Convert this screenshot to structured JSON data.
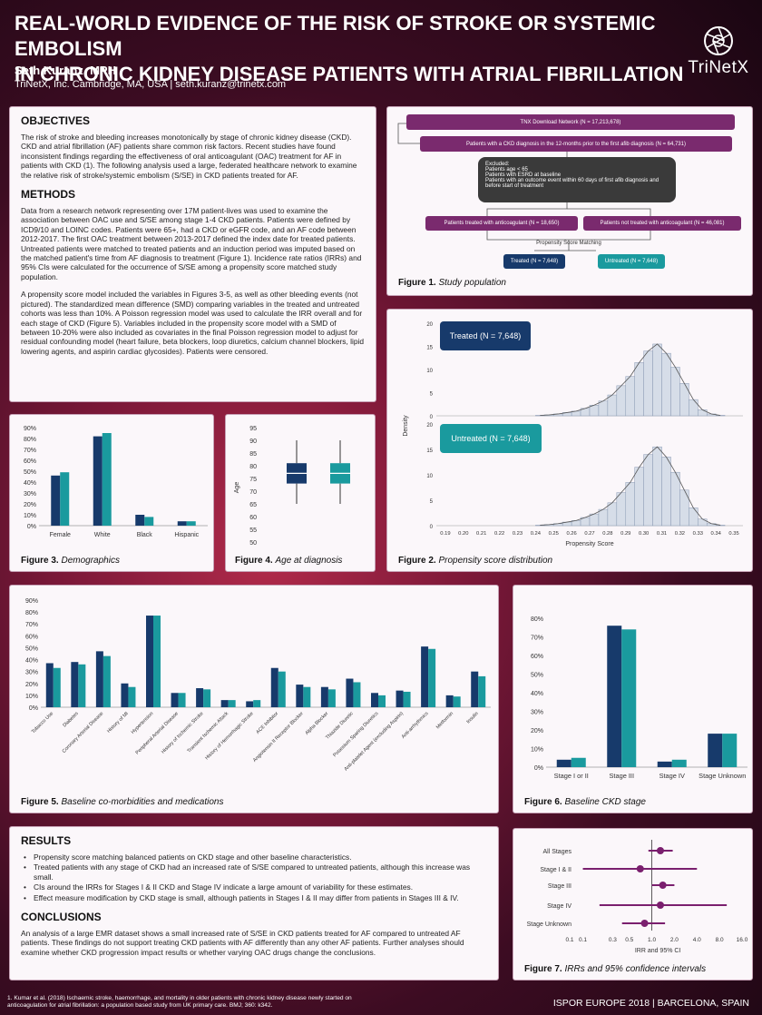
{
  "header": {
    "title_line1": "REAL-WORLD EVIDENCE OF THE RISK OF STROKE OR SYSTEMIC EMBOLISM",
    "title_line2": "IN CHRONIC KIDNEY DISEASE PATIENTS WITH ATRIAL FIBRILLATION",
    "author": "Seth Kuranz, MPH",
    "affiliation": "TriNetX, Inc. Cambridge, MA, USA | seth.kuranz@trinetx.com",
    "logo_text": "TriNetX",
    "logo_icon": "aperture-icon"
  },
  "objectives": {
    "heading": "OBJECTIVES",
    "text": "The risk of stroke and bleeding increases monotonically by stage of chronic kidney disease (CKD). CKD and atrial fibrillation (AF) patients share common risk factors. Recent studies have found inconsistent findings regarding the effectiveness of oral anticoagulant (OAC) treatment for AF in patients with CKD (1). The following analysis used a large, federated healthcare network to examine the relative risk of stroke/systemic embolism (S/SE) in CKD patients treated for AF."
  },
  "methods": {
    "heading": "METHODS",
    "p1": "Data from a research network representing over 17M patient-lives was used to examine the association between OAC use and S/SE among stage 1-4 CKD patients. Patients were defined by ICD9/10 and LOINC codes. Patients were 65+, had a CKD or eGFR code, and an AF code between 2012-2017. The first OAC treatment between 2013-2017 defined the index date for treated patients. Untreated patients were matched to treated patients and an induction period was imputed based on the matched patient's time from AF diagnosis to treatment (Figure 1). Incidence rate ratios (IRRs) and 95% CIs were calculated for the occurrence of S/SE among a propensity score matched study population.",
    "p2": "A propensity score model included the variables in Figures 3-5, as well as other bleeding events (not pictured). The standardized mean difference (SMD) comparing variables in the treated and untreated cohorts was less than 10%. A Poisson regression model was used to calculate the IRR overall and for each stage of CKD (Figure 5). Variables included in the propensity score model with a SMD of between 10-20% were also included as covariates in the final Poisson regression model to adjust for residual confounding model (heart failure, beta blockers, loop diuretics, calcium channel blockers, lipid lowering agents, and aspirin cardiac glycosides). Patients were censored."
  },
  "figure1": {
    "caption_bold": "Figure 1.",
    "caption_italic": "Study population",
    "box1": "TNX Download Network (N = 17,213,678)",
    "box2": "Patients with a CKD diagnosis in the 12-months prior to the first afib diagnosis (N = 64,731)",
    "excluded_title": "Excluded:",
    "excluded_items": [
      "Patients age < 65",
      "Patients with ESRD at baseline",
      "Patients with an outcome event within 60 days of first afib diagnosis and before start of treatment"
    ],
    "treated_box": "Patients treated with anticoagulant (N = 18,650)",
    "untreated_box": "Patients not treated with anticoagulant (N = 46,081)",
    "psm_label": "Propensity Score Matching",
    "treated_final": "Treated (N = 7,648)",
    "untreated_final": "Untreated (N = 7,648)"
  },
  "figure2": {
    "caption_bold": "Figure 2.",
    "caption_italic": "Propensity score distribution"
  },
  "figure3": {
    "caption_bold": "Figure 3.",
    "caption_italic": "Demographics"
  },
  "figure4": {
    "caption_bold": "Figure 4.",
    "caption_italic": "Age at diagnosis"
  },
  "figure5": {
    "caption_bold": "Figure 5.",
    "caption_italic": "Baseline co-morbidities and medications"
  },
  "figure6": {
    "caption_bold": "Figure 6.",
    "caption_italic": "Baseline CKD stage"
  },
  "figure7": {
    "caption_bold": "Figure 7.",
    "caption_italic": "IRRs and 95% confidence intervals"
  },
  "results": {
    "heading": "RESULTS",
    "bullets": [
      "Propensity score matching balanced patients on CKD stage and other baseline characteristics.",
      "Treated patients with any stage of CKD had an increased rate of S/SE compared to untreated patients, although this increase was small.",
      "CIs around the IRRs for Stages I & II CKD and Stage IV indicate a large amount of variability for these estimates.",
      "Effect measure modification by CKD stage is small, although patients in Stages I & II may differ from patients in Stages III & IV."
    ]
  },
  "conclusions": {
    "heading": "CONCLUSIONS",
    "text": "An analysis of a large EMR dataset shows a small increased rate of S/SE in CKD patients treated for AF compared to untreated AF patients. These findings do not support treating CKD patients with AF differently than any other AF patients. Further analyses should examine whether CKD progression impact results or whether varying OAC drugs change the conclusions."
  },
  "footer": {
    "reference": "1. Kumar et al. (2018) Ischaemic stroke, haemorrhage, and mortality in older patients with chronic kidney disease newly started on anticoagulation for atrial fibrillation: a population based study from UK primary care. BMJ; 360: k342.",
    "conference": "ISPOR EUROPE 2018  |  BARCELONA, SPAIN"
  },
  "colors": {
    "treated": "#173a6b",
    "untreated": "#1a9a9e",
    "flow_purple": "#7a2a6e",
    "irr": "#7a1f6e"
  },
  "chart_data": [
    {
      "id": "fig2",
      "type": "histogram",
      "ylabel": "Density",
      "xlabel": "Propensity Score",
      "x_ticks": [
        "0.19",
        "0.20",
        "0.21",
        "0.22",
        "0.23",
        "0.24",
        "0.25",
        "0.26",
        "0.27",
        "0.28",
        "0.29",
        "0.30",
        "0.31",
        "0.32",
        "0.33",
        "0.34",
        "0.35"
      ],
      "y_ticks": [
        "20",
        "15",
        "10",
        "5",
        "0"
      ],
      "ylim": [
        0,
        20
      ],
      "series": [
        {
          "name": "Treated (N = 7,648)",
          "bins_x": [
            0.24,
            0.245,
            0.25,
            0.255,
            0.26,
            0.265,
            0.27,
            0.275,
            0.28,
            0.285,
            0.29,
            0.295,
            0.3,
            0.305,
            0.31,
            0.315,
            0.32,
            0.325,
            0.33,
            0.335,
            0.34
          ],
          "density": [
            0.1,
            0.2,
            0.4,
            0.7,
            1.0,
            1.6,
            2.3,
            3.2,
            4.5,
            6.5,
            8.5,
            11.5,
            14,
            15.5,
            13.5,
            10.5,
            7,
            3.5,
            1.3,
            0.4,
            0.1
          ]
        },
        {
          "name": "Untreated (N = 7,648)",
          "bins_x": [
            0.24,
            0.245,
            0.25,
            0.255,
            0.26,
            0.265,
            0.27,
            0.275,
            0.28,
            0.285,
            0.29,
            0.295,
            0.3,
            0.305,
            0.31,
            0.315,
            0.32,
            0.325,
            0.33,
            0.335,
            0.34
          ],
          "density": [
            0.1,
            0.2,
            0.4,
            0.7,
            1.0,
            1.6,
            2.3,
            3.2,
            4.5,
            6.5,
            8.5,
            11.5,
            14,
            15.5,
            13.5,
            10.5,
            7,
            3.5,
            1.3,
            0.4,
            0.1
          ]
        }
      ]
    },
    {
      "id": "fig3",
      "type": "bar",
      "categories": [
        "Female",
        "White",
        "Black",
        "Hispanic"
      ],
      "y_ticks": [
        "90%",
        "80%",
        "70%",
        "60%",
        "50%",
        "40%",
        "30%",
        "20%",
        "10%",
        "0%"
      ],
      "ylim": [
        0,
        90
      ],
      "series": [
        {
          "name": "Treated",
          "values": [
            46,
            82,
            10,
            4
          ]
        },
        {
          "name": "Untreated",
          "values": [
            49,
            85,
            8,
            4
          ]
        }
      ]
    },
    {
      "id": "fig4",
      "type": "boxplot",
      "ylabel": "Age",
      "y_ticks": [
        "95",
        "90",
        "85",
        "80",
        "75",
        "70",
        "65",
        "60",
        "55",
        "50"
      ],
      "ylim": [
        50,
        95
      ],
      "series": [
        {
          "name": "Treated",
          "min": 65,
          "q1": 73,
          "median": 77,
          "q3": 81,
          "max": 90
        },
        {
          "name": "Untreated",
          "min": 65,
          "q1": 73,
          "median": 77,
          "q3": 81,
          "max": 90
        }
      ]
    },
    {
      "id": "fig5",
      "type": "bar",
      "categories": [
        "Tobacco Use",
        "Diabetes",
        "Coronary Arterial Disease",
        "History of MI",
        "Hypertension",
        "Peripheral Arterial Disease",
        "History of Ischemic Stroke",
        "Transient Ischemic Attack",
        "History of Hemorrhagic Stroke",
        "ACE Inhibitor",
        "Angiotensin II Receptor Blocker",
        "Alpha Blocker",
        "Thiazide Diuretic",
        "Potassium Sparing Diuretics",
        "Anti-platelet Agent (excluding Aspirin)",
        "Anti-arrhythmics",
        "Metformin",
        "Insulin"
      ],
      "y_ticks": [
        "90%",
        "80%",
        "70%",
        "60%",
        "50%",
        "40%",
        "30%",
        "20%",
        "10%",
        "0%"
      ],
      "ylim": [
        0,
        90
      ],
      "series": [
        {
          "name": "Treated",
          "values": [
            37,
            38,
            47,
            20,
            77,
            12,
            16,
            6,
            5,
            33,
            19,
            17,
            24,
            12,
            14,
            51,
            10,
            30
          ]
        },
        {
          "name": "Untreated",
          "values": [
            33,
            36,
            43,
            17,
            77,
            12,
            15,
            6,
            6,
            30,
            17,
            15,
            21,
            10,
            13,
            49,
            9,
            26
          ]
        }
      ]
    },
    {
      "id": "fig6",
      "type": "bar",
      "categories": [
        "Stage I or II",
        "Stage III",
        "Stage IV",
        "Stage Unknown"
      ],
      "y_ticks": [
        "80%",
        "70%",
        "60%",
        "50%",
        "40%",
        "30%",
        "20%",
        "10%",
        "0%"
      ],
      "ylim": [
        0,
        80
      ],
      "series": [
        {
          "name": "Treated",
          "values": [
            4,
            76,
            3,
            18
          ]
        },
        {
          "name": "Untreated",
          "values": [
            5,
            74,
            4,
            18
          ]
        }
      ]
    },
    {
      "id": "fig7",
      "type": "forest",
      "xlabel": "IRR and 95% CI",
      "x_ticks": [
        "0.1",
        "0.1",
        "0.3",
        "0.5",
        "1.0",
        "2.0",
        "4.0",
        "8.0",
        "16.0"
      ],
      "categories": [
        "All Stages",
        "Stage I  & II",
        "Stage III",
        "Stage IV",
        "Stage Unknown"
      ],
      "irr": [
        1.3,
        0.7,
        1.4,
        1.3,
        0.8
      ],
      "ci_low": [
        0.9,
        0.12,
        1.0,
        0.2,
        0.4
      ],
      "ci_high": [
        1.9,
        4.0,
        2.0,
        10.0,
        1.5
      ]
    }
  ]
}
